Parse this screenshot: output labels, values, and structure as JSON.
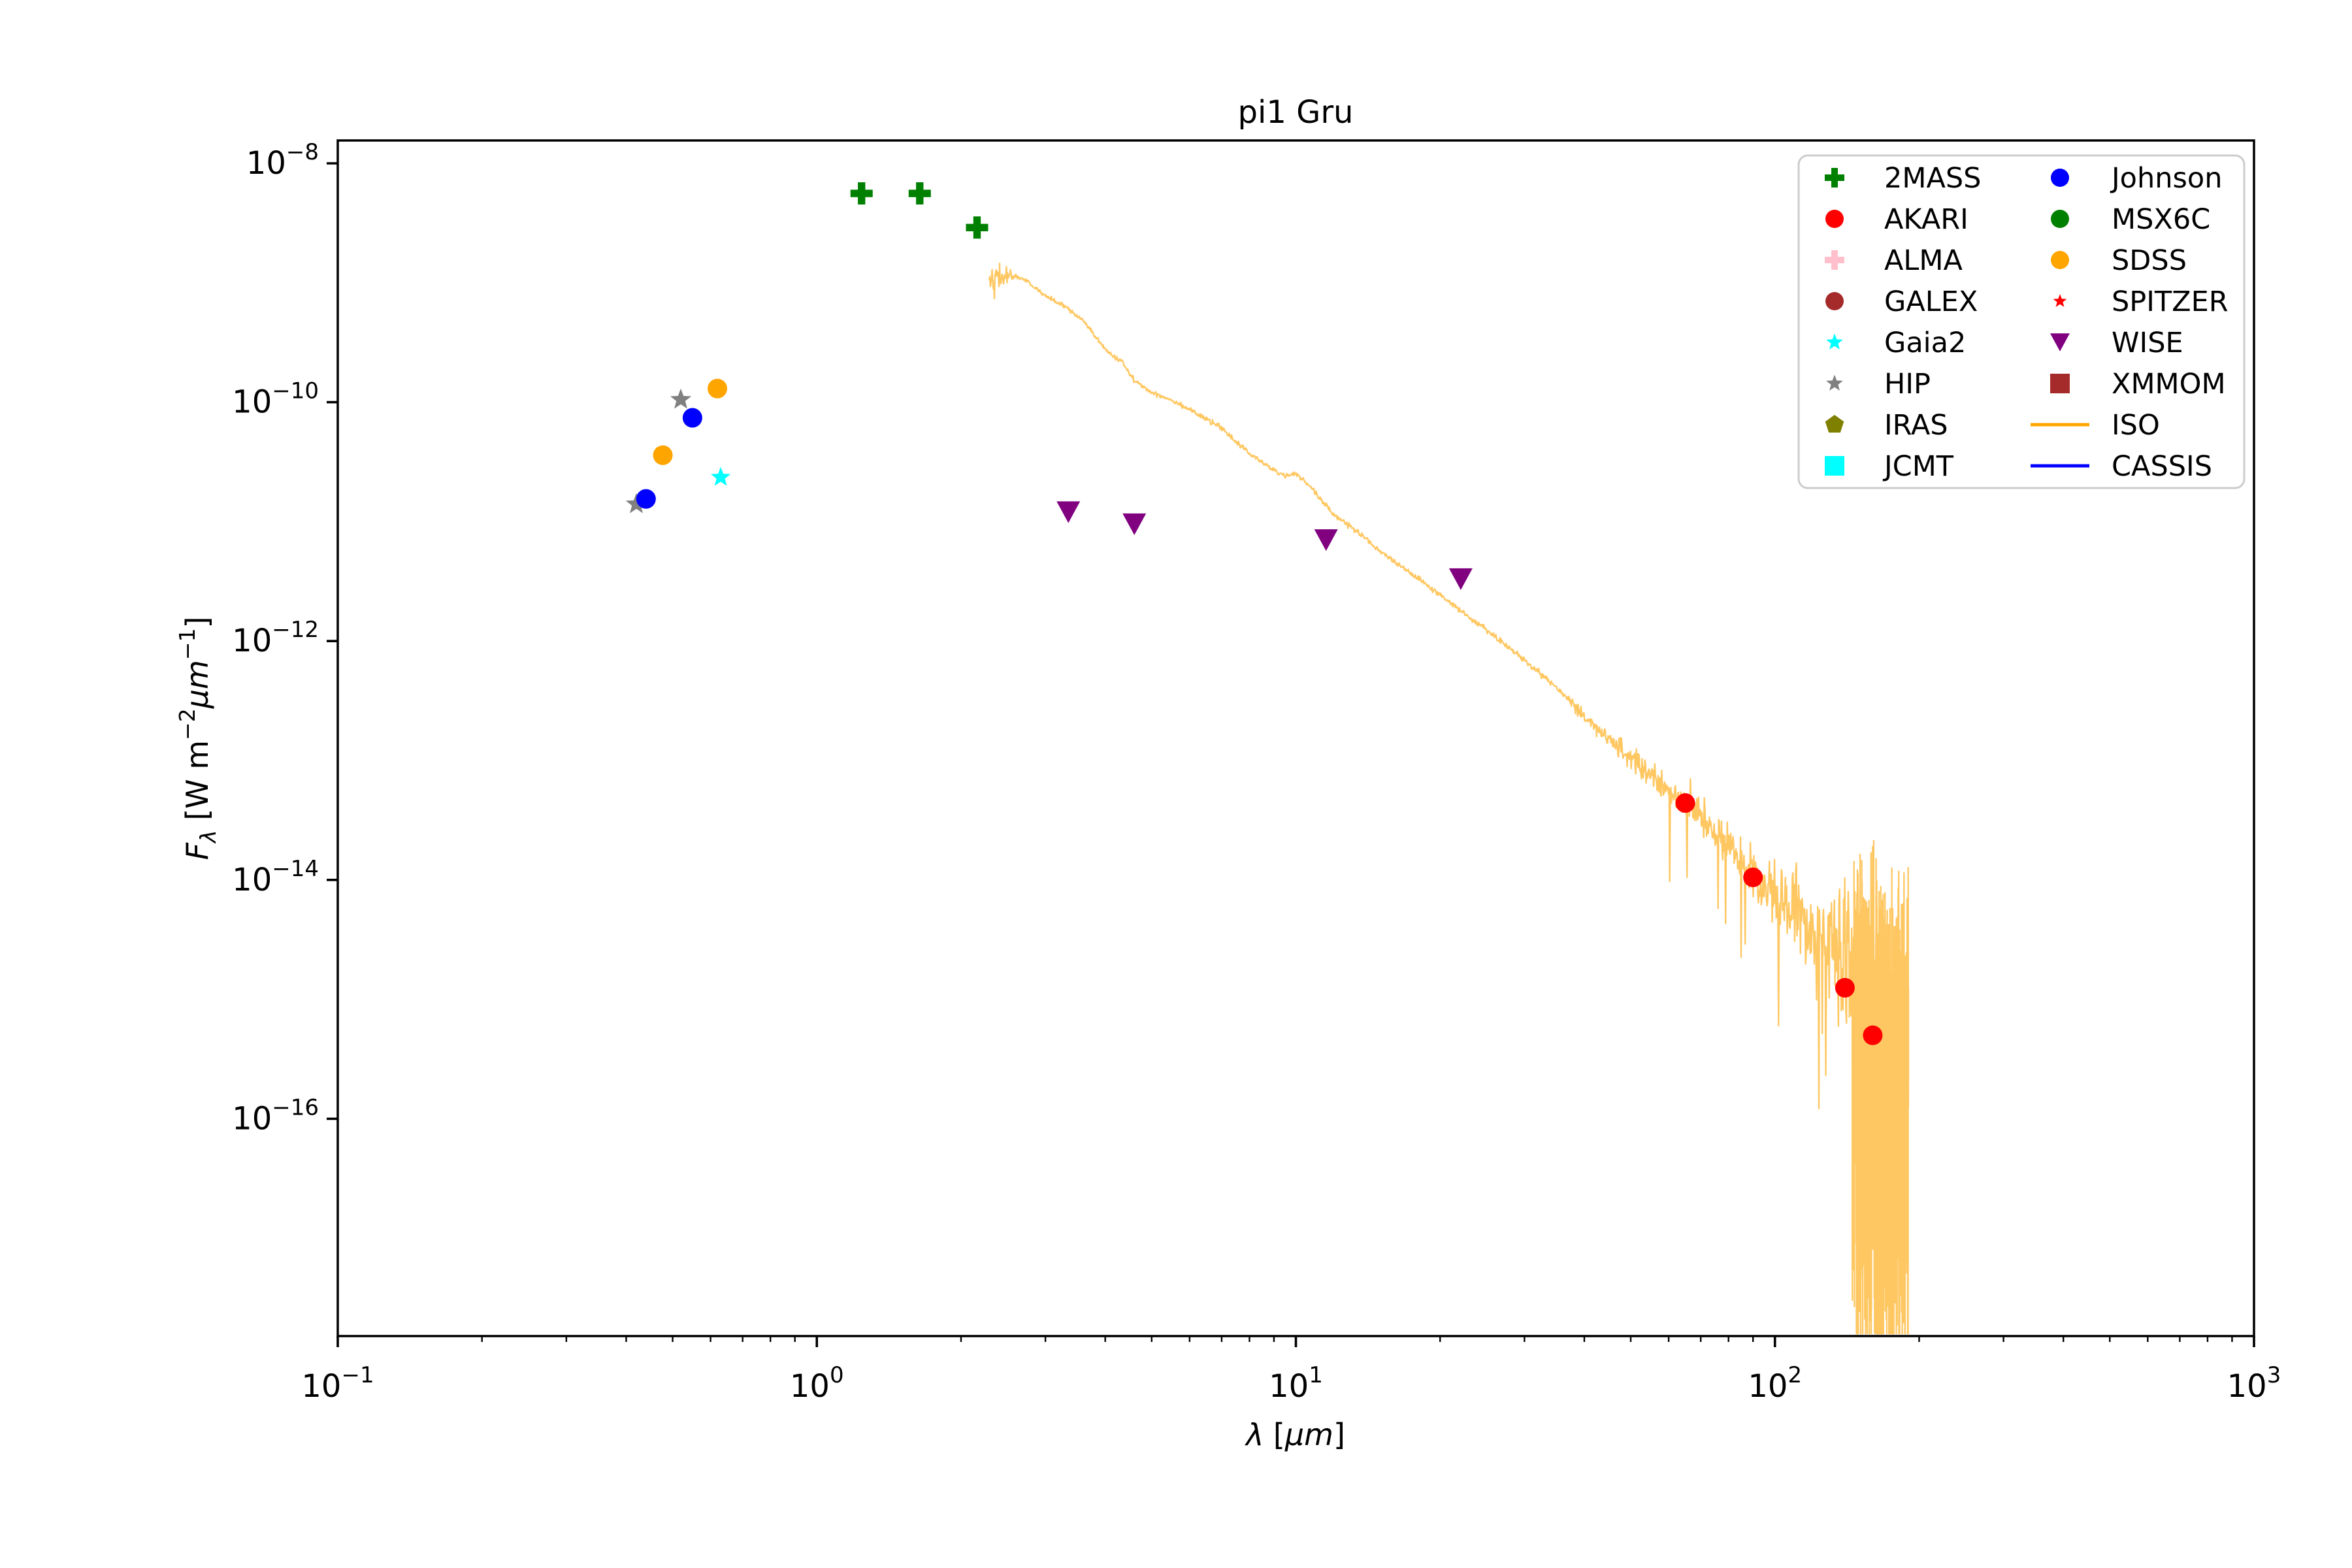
{
  "title": "pi1 Gru",
  "axes": {
    "x": {
      "label_parts": [
        {
          "t": "λ",
          "i": 1
        },
        {
          "t": " ["
        },
        {
          "t": "μm",
          "i": 1
        },
        {
          "t": "]"
        }
      ],
      "tick_exponents": [
        -1,
        0,
        1,
        2,
        3
      ],
      "scale": "log",
      "range_log10": [
        -1,
        3
      ]
    },
    "y": {
      "label_parts": [
        {
          "t": "F",
          "i": 1
        },
        {
          "t": "λ",
          "i": 1,
          "sub": 1
        },
        {
          "t": " [W m"
        },
        {
          "t": "−2",
          "sup": 1
        },
        {
          "t": "μm",
          "i": 1
        },
        {
          "t": "−1",
          "sup": 1
        },
        {
          "t": "]"
        }
      ],
      "tick_exponents": [
        -8,
        -10,
        -12,
        -14,
        -16
      ],
      "scale": "log",
      "range_log10": [
        -17.82,
        -7.81
      ]
    }
  },
  "legend": {
    "columns": 2,
    "rows_per_column": 8,
    "frame_color": "#cccccc",
    "entries": [
      {
        "label": "2MASS",
        "marker": "plus",
        "color": "#008000"
      },
      {
        "label": "AKARI",
        "marker": "circle",
        "color": "#ff0000"
      },
      {
        "label": "ALMA",
        "marker": "plus",
        "color": "#ffc0cb"
      },
      {
        "label": "GALEX",
        "marker": "circle",
        "color": "#a52a2a"
      },
      {
        "label": "Gaia2",
        "marker": "star",
        "color": "#00ffff"
      },
      {
        "label": "HIP",
        "marker": "star",
        "color": "#808080"
      },
      {
        "label": "IRAS",
        "marker": "pentagon",
        "color": "#808000"
      },
      {
        "label": "JCMT",
        "marker": "square",
        "color": "#00ffff"
      },
      {
        "label": "Johnson",
        "marker": "circle",
        "color": "#0000ff"
      },
      {
        "label": "MSX6C",
        "marker": "circle",
        "color": "#008000"
      },
      {
        "label": "SDSS",
        "marker": "circle",
        "color": "#ffa500"
      },
      {
        "label": "SPITZER",
        "marker": "star_small",
        "color": "#ff0000"
      },
      {
        "label": "WISE",
        "marker": "triangle_down",
        "color": "#800080"
      },
      {
        "label": "XMMOM",
        "marker": "square",
        "color": "#a52a2a"
      },
      {
        "label": "ISO",
        "marker": "line",
        "color": "#ffa500"
      },
      {
        "label": "CASSIS",
        "marker": "line",
        "color": "#0000ff"
      }
    ]
  },
  "chart_data": {
    "type": "scatter",
    "title": "pi1 Gru",
    "xlabel": "λ [μm]",
    "ylabel": "F_λ [W m^-2 μm^-1]",
    "x_scale": "log",
    "y_scale": "log",
    "xlim": [
      0.1,
      1000
    ],
    "ylim_log10": [
      -17.82,
      -7.81
    ],
    "grid": false,
    "legend_position": "upper right",
    "series": [
      {
        "name": "HIP",
        "marker": "star",
        "color": "#808080",
        "size": 34,
        "points": [
          [
            0.42,
            1.4e-11
          ],
          [
            0.52,
            1.05e-10
          ]
        ]
      },
      {
        "name": "Johnson",
        "marker": "circle",
        "color": "#0000ff",
        "size": 30,
        "points": [
          [
            0.44,
            1.55e-11
          ],
          [
            0.55,
            7.4e-11
          ]
        ]
      },
      {
        "name": "SDSS",
        "marker": "circle",
        "color": "#ffa500",
        "size": 30,
        "points": [
          [
            0.477,
            3.6e-11
          ],
          [
            0.62,
            1.3e-10
          ]
        ]
      },
      {
        "name": "Gaia2",
        "marker": "star",
        "color": "#00ffff",
        "size": 32,
        "points": [
          [
            0.63,
            2.35e-11
          ]
        ]
      },
      {
        "name": "2MASS",
        "marker": "plus",
        "color": "#008000",
        "size": 34,
        "points": [
          [
            1.24,
            5.6e-09
          ],
          [
            1.64,
            5.6e-09
          ],
          [
            2.16,
            2.9e-09
          ]
        ]
      },
      {
        "name": "WISE",
        "marker": "triangle_down",
        "color": "#800080",
        "size": 36,
        "points": [
          [
            3.35,
            1.2e-11
          ],
          [
            4.6,
            9.5e-12
          ],
          [
            11.56,
            7e-12
          ],
          [
            22.09,
            3.3e-12
          ]
        ]
      },
      {
        "name": "AKARI",
        "marker": "circle",
        "color": "#ff0000",
        "size": 30,
        "points": [
          [
            65,
            4.4e-14
          ],
          [
            90,
            1.05e-14
          ],
          [
            140,
            1.25e-15
          ],
          [
            160,
            5e-16
          ]
        ]
      }
    ],
    "iso_spectrum": {
      "name": "ISO",
      "color": "#ffa500",
      "opacity": 0.62,
      "wavelength_range_um": [
        2.29,
        190
      ],
      "waypoints_log10": [
        [
          2.29,
          -8.93
        ],
        [
          2.35,
          -8.97
        ],
        [
          2.45,
          -8.95
        ],
        [
          2.6,
          -8.94
        ],
        [
          2.75,
          -8.99
        ],
        [
          3.0,
          -9.11
        ],
        [
          3.3,
          -9.2
        ],
        [
          3.6,
          -9.32
        ],
        [
          3.8,
          -9.44
        ],
        [
          4.0,
          -9.56
        ],
        [
          4.2,
          -9.63
        ],
        [
          4.35,
          -9.66
        ],
        [
          4.6,
          -9.82
        ],
        [
          5.0,
          -9.92
        ],
        [
          5.5,
          -9.98
        ],
        [
          6.0,
          -10.06
        ],
        [
          7.0,
          -10.22
        ],
        [
          8.0,
          -10.43
        ],
        [
          9.0,
          -10.57
        ],
        [
          9.5,
          -10.62
        ],
        [
          10.0,
          -10.6
        ],
        [
          10.5,
          -10.67
        ],
        [
          11.2,
          -10.8
        ],
        [
          12.0,
          -10.94
        ],
        [
          13.0,
          -11.04
        ],
        [
          15.0,
          -11.25
        ],
        [
          18.0,
          -11.48
        ],
        [
          22.0,
          -11.74
        ],
        [
          26.0,
          -11.96
        ],
        [
          30.0,
          -12.16
        ],
        [
          35.0,
          -12.39
        ],
        [
          40.0,
          -12.63
        ],
        [
          45.0,
          -12.82
        ],
        [
          50.0,
          -12.98
        ],
        [
          55.0,
          -13.12
        ],
        [
          60.0,
          -13.26
        ],
        [
          65.0,
          -13.36
        ],
        [
          70.0,
          -13.48
        ],
        [
          80.0,
          -13.72
        ],
        [
          90.0,
          -13.96
        ],
        [
          100.0,
          -14.13
        ],
        [
          110.0,
          -14.28
        ],
        [
          120.0,
          -14.43
        ],
        [
          130.0,
          -14.56
        ],
        [
          140.0,
          -14.7
        ],
        [
          150.0,
          -14.82
        ],
        [
          160.0,
          -14.94
        ],
        [
          170.0,
          -15.05
        ],
        [
          180.0,
          -15.16
        ],
        [
          190.0,
          -15.25
        ]
      ],
      "noise_model": {
        "seed": 42,
        "sigma_breaks": [
          [
            2.29,
            0.05
          ],
          [
            2.45,
            0.05
          ],
          [
            2.6,
            0.009
          ],
          [
            35,
            0.012
          ],
          [
            50,
            0.05
          ],
          [
            70,
            0.075
          ],
          [
            100,
            0.13
          ],
          [
            130,
            0.22
          ],
          [
            145,
            0.45
          ],
          [
            190,
            0.48
          ]
        ],
        "dips": [
          [
            55,
            100,
            0.015,
            0.3,
            0.9
          ],
          [
            100,
            145,
            0.05,
            0.4,
            1.2
          ],
          [
            145,
            190,
            0.3,
            0.6,
            3.2
          ]
        ],
        "ups": [
          [
            145,
            190,
            0.05,
            0.25,
            0.7
          ]
        ],
        "explicit_up_spikes": [
          [
            185,
            -14.2
          ]
        ],
        "floor_log10": -17.8,
        "n_points_smooth": 1500,
        "n_points_tail": 900
      }
    },
    "cassis": {
      "name": "CASSIS",
      "color": "#0000ff",
      "points": []
    }
  }
}
